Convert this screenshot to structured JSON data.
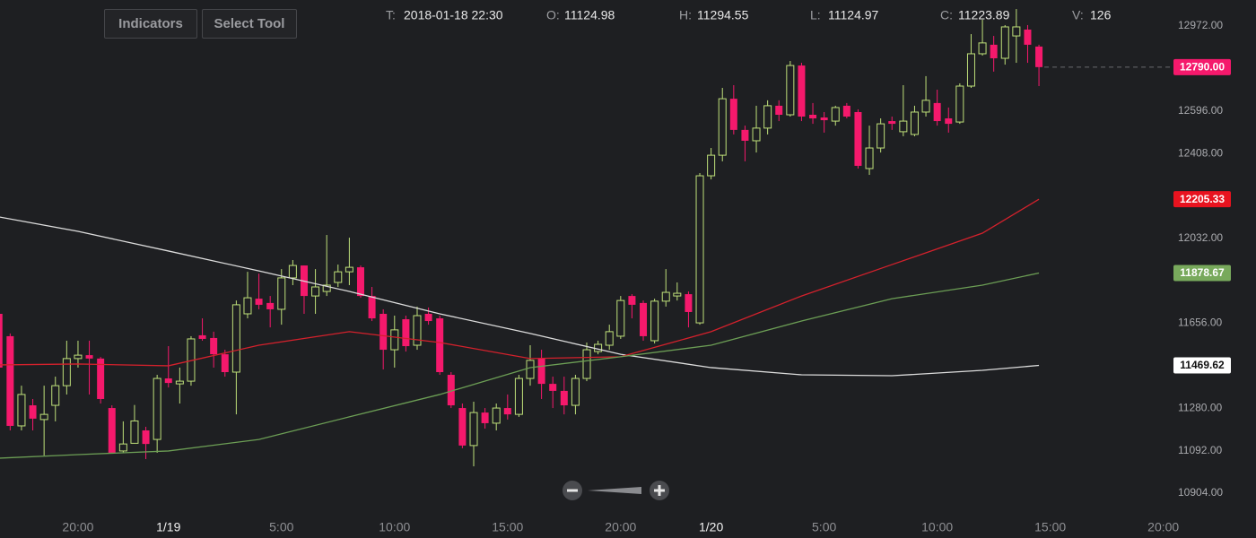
{
  "toolbar": {
    "buttons": [
      "Indicators",
      "Select Tool"
    ]
  },
  "chart_data": {
    "type": "candlestick",
    "header": [
      {
        "label": "T:",
        "value": "2018-01-18 22:30"
      },
      {
        "label": "O:",
        "value": 11124.98
      },
      {
        "label": "H:",
        "value": 11294.55
      },
      {
        "label": "L:",
        "value": 11124.97
      },
      {
        "label": "C:",
        "value": 11223.89
      },
      {
        "label": "V:",
        "value": 126
      }
    ],
    "up_color": "#bfe07a",
    "down_color": "#f5196c",
    "x": [
      16.5,
      17,
      17.5,
      18,
      18.5,
      19,
      19.5,
      20,
      20.5,
      21,
      21.5,
      22,
      22.5,
      23,
      23.5,
      24,
      24.5,
      25,
      25.5,
      26,
      26.5,
      27,
      27.5,
      28,
      28.5,
      29,
      29.5,
      30,
      30.5,
      31,
      31.5,
      32,
      32.5,
      33,
      33.5,
      34,
      34.5,
      35,
      35.5,
      36,
      36.5,
      37,
      37.5,
      38,
      38.5,
      39,
      39.5,
      40,
      40.5,
      41,
      41.5,
      42,
      42.5,
      43,
      43.5,
      44,
      44.5,
      45,
      45.5,
      46,
      46.5,
      47,
      47.5,
      48,
      48.5,
      49,
      49.5,
      50,
      50.5,
      51,
      51.5,
      52,
      52.5,
      53,
      53.5,
      54,
      54.5,
      55,
      55.5,
      56,
      56.5,
      57,
      57.5,
      58,
      58.5,
      59,
      59.5,
      60,
      60.5,
      61,
      61.5,
      62,
      62.5
    ],
    "open": [
      11698,
      11599,
      11202,
      11293,
      11230,
      11293,
      11380,
      11500,
      11515,
      11500,
      11281,
      11091,
      11124.98,
      11182,
      11142,
      11412,
      11388,
      11400,
      11603,
      11591,
      11519,
      11440,
      11698,
      11765,
      11746,
      11718,
      11857,
      11912,
      11777,
      11797,
      11837,
      11884,
      11904,
      11777,
      11698,
      11539,
      11674,
      11559,
      11698,
      11678,
      11428,
      11281,
      11115,
      11261,
      11214,
      11281,
      11253,
      11412,
      11500,
      11388,
      11357,
      11293,
      11412,
      11531,
      11559,
      11599,
      11777,
      11746,
      11579,
      11754,
      11777,
      11785,
      11658,
      12309,
      12400,
      12650,
      12512,
      12464,
      12520,
      12619,
      12579,
      12797,
      12579,
      12567,
      12551,
      12619,
      12591,
      12341,
      12432,
      12551,
      12504,
      12492,
      12591,
      12631,
      12563,
      12547,
      12706,
      12849,
      12889,
      12829,
      12928,
      12956,
      12881
    ],
    "high": [
      11706,
      11611,
      11380,
      11321,
      11380,
      11420,
      11579,
      11579,
      11579,
      11507,
      11293,
      11222,
      11294.55,
      11198,
      11428,
      11555,
      11460,
      11599,
      11678,
      11619,
      11539,
      11757,
      11884,
      11876,
      11777,
      11896,
      11936,
      11912,
      11896,
      12047,
      11916,
      12035,
      11912,
      11817,
      11718,
      11690,
      11690,
      11730,
      11726,
      11690,
      11440,
      11301,
      11309,
      11281,
      11301,
      11341,
      11428,
      11559,
      11539,
      11420,
      11420,
      11428,
      11571,
      11579,
      11650,
      11777,
      11785,
      11757,
      11765,
      11896,
      11837,
      11797,
      12321,
      12432,
      12698,
      12710,
      12531,
      12619,
      12643,
      12643,
      12817,
      12809,
      12631,
      12591,
      12619,
      12631,
      12603,
      12531,
      12563,
      12571,
      12710,
      12619,
      12750,
      12690,
      12611,
      12718,
      12936,
      13000,
      12928,
      12976,
      13047,
      12976,
      12889
    ],
    "low": [
      11341,
      11182,
      11182,
      11182,
      11071,
      11222,
      11341,
      11460,
      11341,
      11301,
      11083,
      11083,
      11124.97,
      11055,
      11083,
      11372,
      11301,
      11380,
      11579,
      11460,
      11420,
      11253,
      11678,
      11718,
      11638,
      11650,
      11825,
      11698,
      11698,
      11777,
      11817,
      11825,
      11769,
      11666,
      11452,
      11460,
      11531,
      11539,
      11650,
      11428,
      11281,
      11103,
      11023,
      11190,
      11182,
      11230,
      11242,
      11380,
      11321,
      11281,
      11253,
      11253,
      11400,
      11519,
      11539,
      11587,
      11678,
      11579,
      11567,
      11730,
      11757,
      11638,
      11650,
      12293,
      12373,
      12492,
      12373,
      12412,
      12492,
      12551,
      12571,
      12551,
      12539,
      12500,
      12531,
      12563,
      12341,
      12313,
      12412,
      12512,
      12484,
      12484,
      12571,
      12531,
      12500,
      12539,
      12698,
      12841,
      12770,
      12801,
      12809,
      12809,
      12706
    ],
    "close": [
      11460,
      11202,
      11341,
      11234,
      11253,
      11380,
      11500,
      11515,
      11500,
      11321,
      11083,
      11122,
      11223.89,
      11122,
      11412,
      11392,
      11400,
      11587,
      11587,
      11519,
      11440,
      11738,
      11769,
      11738,
      11718,
      11857,
      11912,
      11777,
      11817,
      11825,
      11884,
      11904,
      11777,
      11678,
      11539,
      11627,
      11555,
      11690,
      11666,
      11440,
      11293,
      11115,
      11261,
      11214,
      11281,
      11253,
      11412,
      11492,
      11388,
      11357,
      11293,
      11412,
      11539,
      11563,
      11619,
      11757,
      11738,
      11599,
      11754,
      11793,
      11789,
      11706,
      12309,
      12400,
      12650,
      12512,
      12464,
      12520,
      12619,
      12579,
      12797,
      12571,
      12563,
      12555,
      12611,
      12571,
      12353,
      12432,
      12539,
      12539,
      12551,
      12591,
      12643,
      12551,
      12539,
      12706,
      12849,
      12897,
      12829,
      12968,
      12968,
      12889,
      12790
    ],
    "lines": [
      {
        "color": "#dcdcdc",
        "x": [
          16.5,
          20,
          24,
          28,
          32,
          36,
          40,
          44,
          48,
          52,
          56,
          60,
          62.5
        ],
        "values": [
          12127,
          12063,
          11976,
          11888,
          11797,
          11698,
          11611,
          11519,
          11460,
          11428,
          11424,
          11448,
          11469.62
        ]
      },
      {
        "color": "#d4212c",
        "x": [
          16.5,
          20,
          24,
          28,
          32,
          36,
          40,
          44,
          48,
          52,
          56,
          60,
          62.5
        ],
        "values": [
          11472,
          11476,
          11468,
          11559,
          11619,
          11571,
          11500,
          11508,
          11619,
          11777,
          11916,
          12055,
          12205.33
        ]
      },
      {
        "color": "#6c9e55",
        "x": [
          16.5,
          20,
          24,
          28,
          32,
          36,
          40,
          44,
          48,
          52,
          56,
          60,
          62.5
        ],
        "values": [
          11059,
          11075,
          11091,
          11142,
          11242,
          11341,
          11460,
          11508,
          11559,
          11666,
          11765,
          11825,
          11878.67
        ]
      }
    ],
    "price_tags": [
      {
        "value": 12790,
        "label": "12790.00",
        "color": "#f5196c",
        "text_color": "#ffffff",
        "dashed": true
      },
      {
        "value": 12205.33,
        "label": "12205.33",
        "color": "#e8131f",
        "text_color": "#ffffff"
      },
      {
        "value": 11878.67,
        "label": "11878.67",
        "color": "#78a95c",
        "text_color": "#ffffff"
      },
      {
        "value": 11469.62,
        "label": "11469.62",
        "color": "#ffffff",
        "text_color": "#111111"
      }
    ],
    "xlim": [
      16.55,
      68.33
    ],
    "xticks": [
      {
        "value": 20,
        "label": "20:00"
      },
      {
        "value": 24,
        "label": "1/19"
      },
      {
        "value": 29,
        "label": "5:00"
      },
      {
        "value": 34,
        "label": "10:00"
      },
      {
        "value": 39,
        "label": "15:00"
      },
      {
        "value": 44,
        "label": "20:00"
      },
      {
        "value": 48,
        "label": "1/20"
      },
      {
        "value": 53,
        "label": "5:00"
      },
      {
        "value": 58,
        "label": "10:00"
      },
      {
        "value": 63,
        "label": "15:00"
      },
      {
        "value": 68,
        "label": "20:00"
      }
    ],
    "ylim": [
      10805,
      13087
    ],
    "yticks": [
      {
        "value": 12972,
        "label": "12972.00"
      },
      {
        "value": 12596,
        "label": "12596.00"
      },
      {
        "value": 12408,
        "label": "12408.00"
      },
      {
        "value": 12032,
        "label": "12032.00"
      },
      {
        "value": 11656,
        "label": "11656.00"
      },
      {
        "value": 11280,
        "label": "11280.00"
      },
      {
        "value": 11092,
        "label": "11092.00"
      },
      {
        "value": 10904,
        "label": "10904.00"
      }
    ]
  }
}
